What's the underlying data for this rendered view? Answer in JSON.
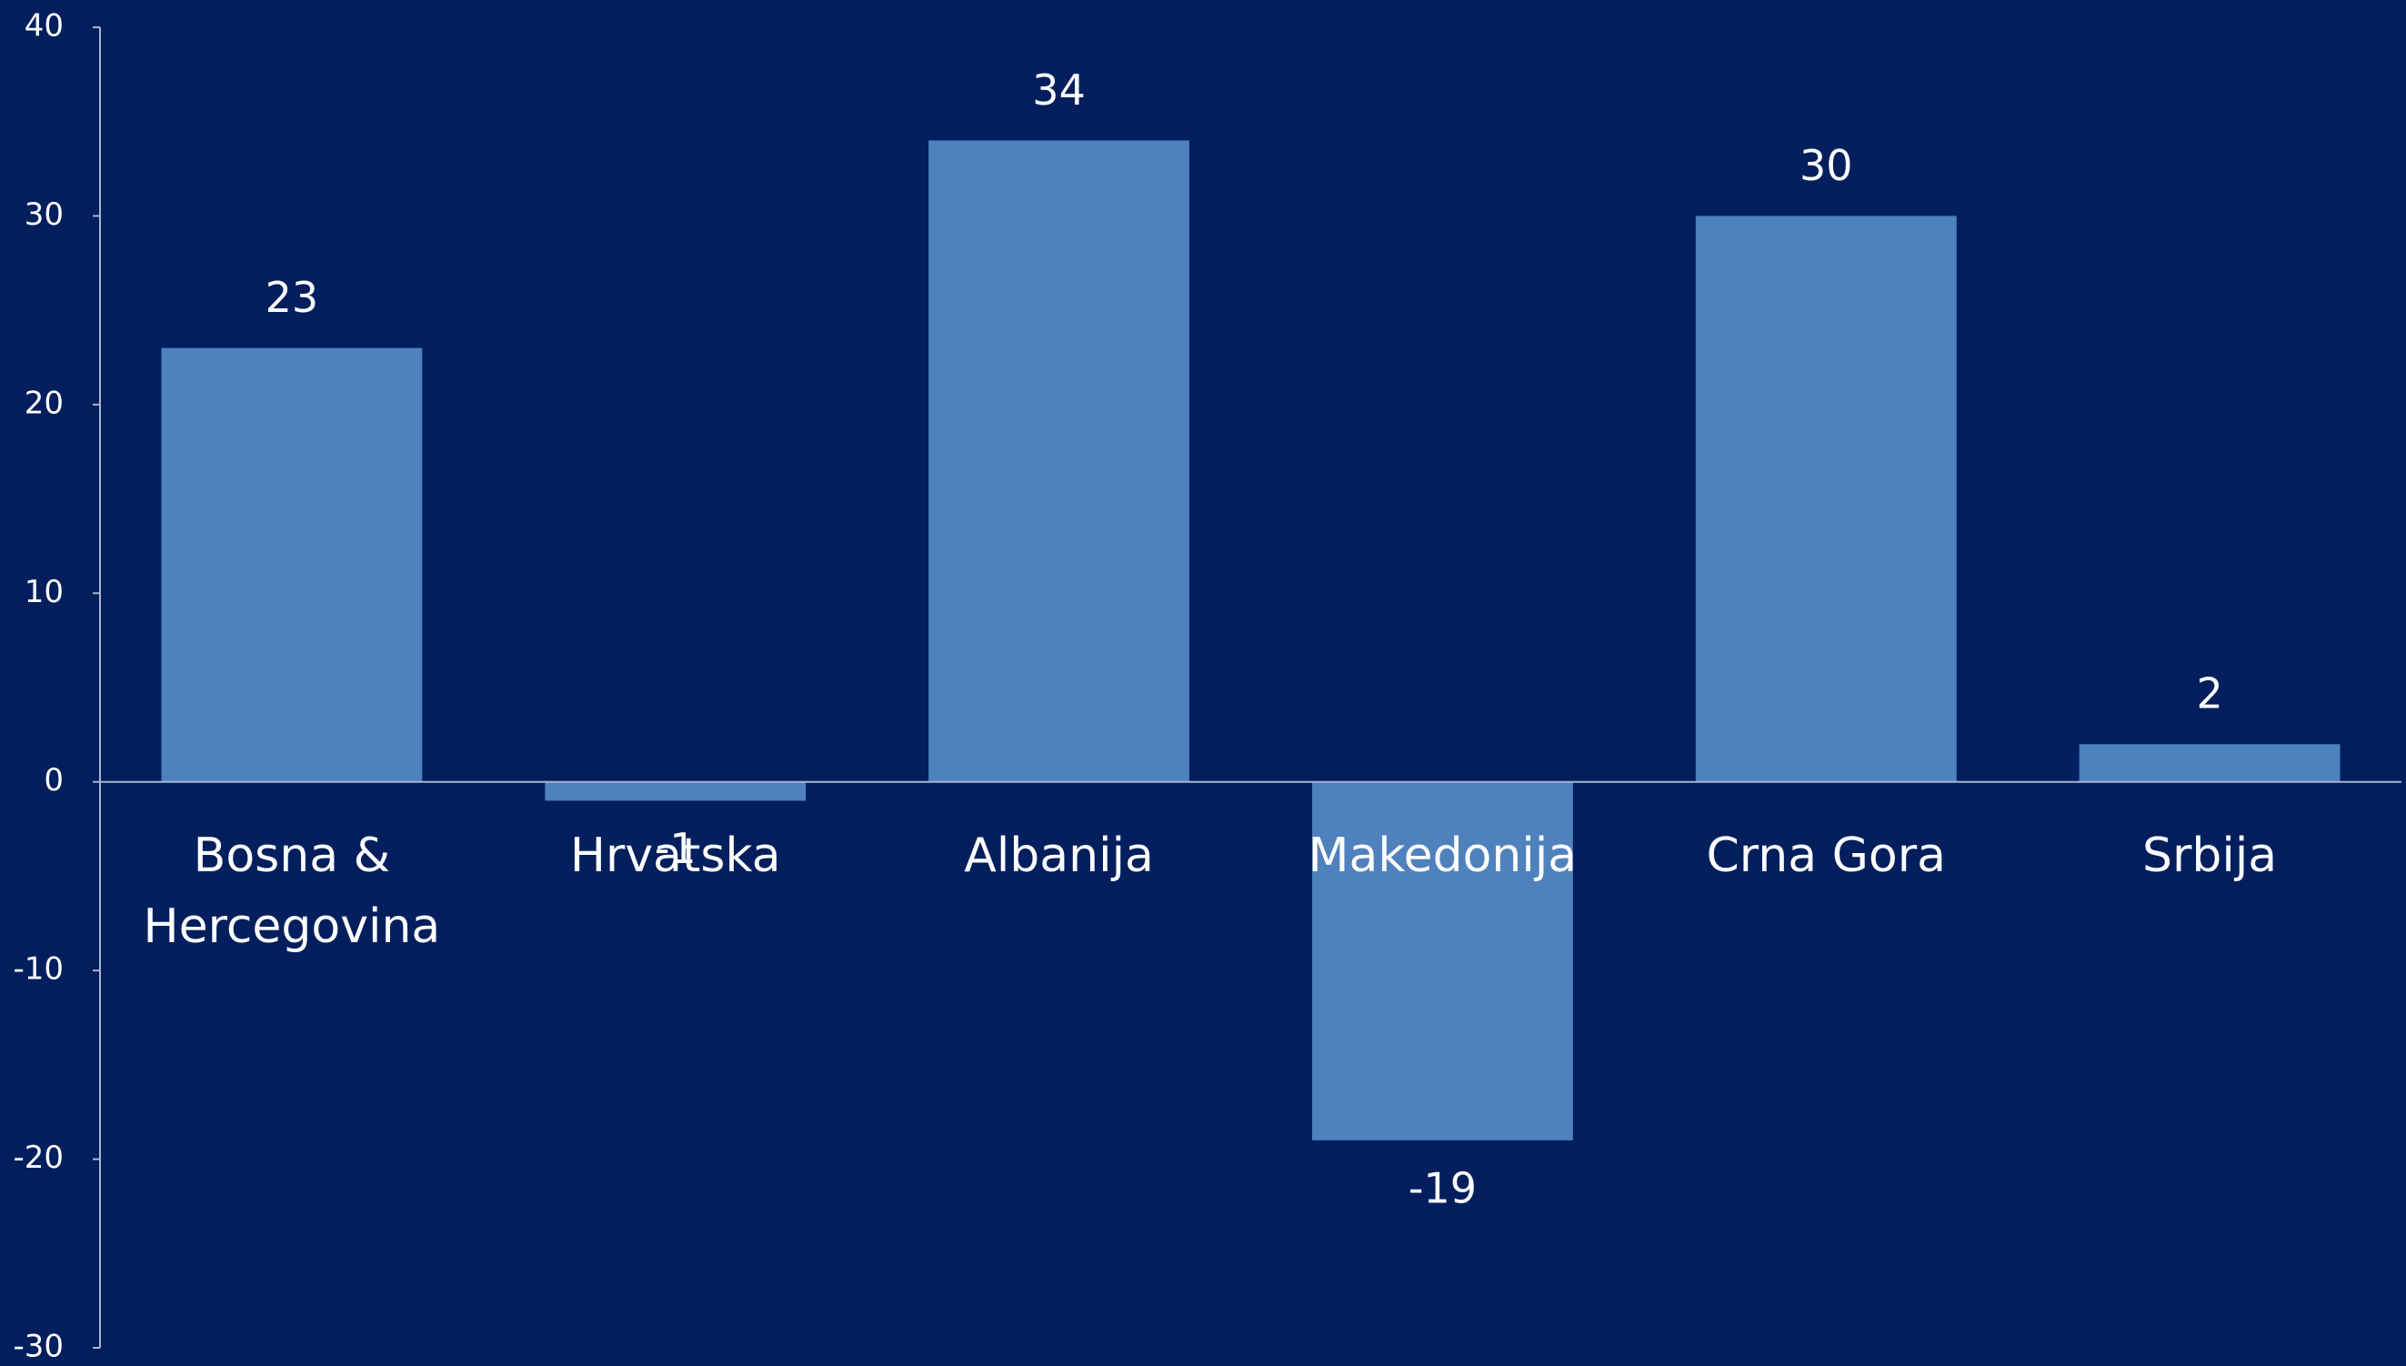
{
  "chart_data": {
    "type": "bar",
    "categories": [
      "Bosna & Hercegovina",
      "Hrvatska",
      "Albanija",
      "Makedonija",
      "Crna Gora",
      "Srbija"
    ],
    "values": [
      23,
      -1,
      34,
      -19,
      30,
      2
    ],
    "color": "#4f81bd",
    "ylim": [
      -30,
      40
    ],
    "yticks": [
      -30,
      -20,
      -10,
      0,
      10,
      20,
      30,
      40
    ],
    "grid": false
  }
}
